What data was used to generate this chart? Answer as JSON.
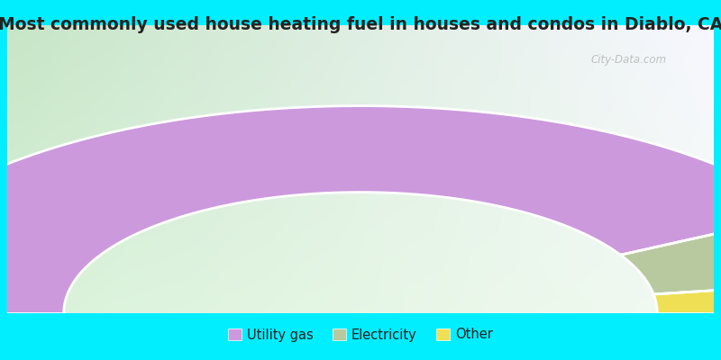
{
  "title": "Most commonly used house heating fuel in houses and condos in Diablo, CA",
  "segments": [
    {
      "label": "Utility gas",
      "value": 84.0,
      "color": "#cc99dd"
    },
    {
      "label": "Electricity",
      "value": 11.0,
      "color": "#b8c9a0"
    },
    {
      "label": "Other",
      "value": 5.0,
      "color": "#eedf55"
    }
  ],
  "background_color": "#00eeff",
  "title_color": "#222222",
  "title_fontsize": 13.5,
  "legend_fontsize": 10.5,
  "watermark": "City-Data.com"
}
